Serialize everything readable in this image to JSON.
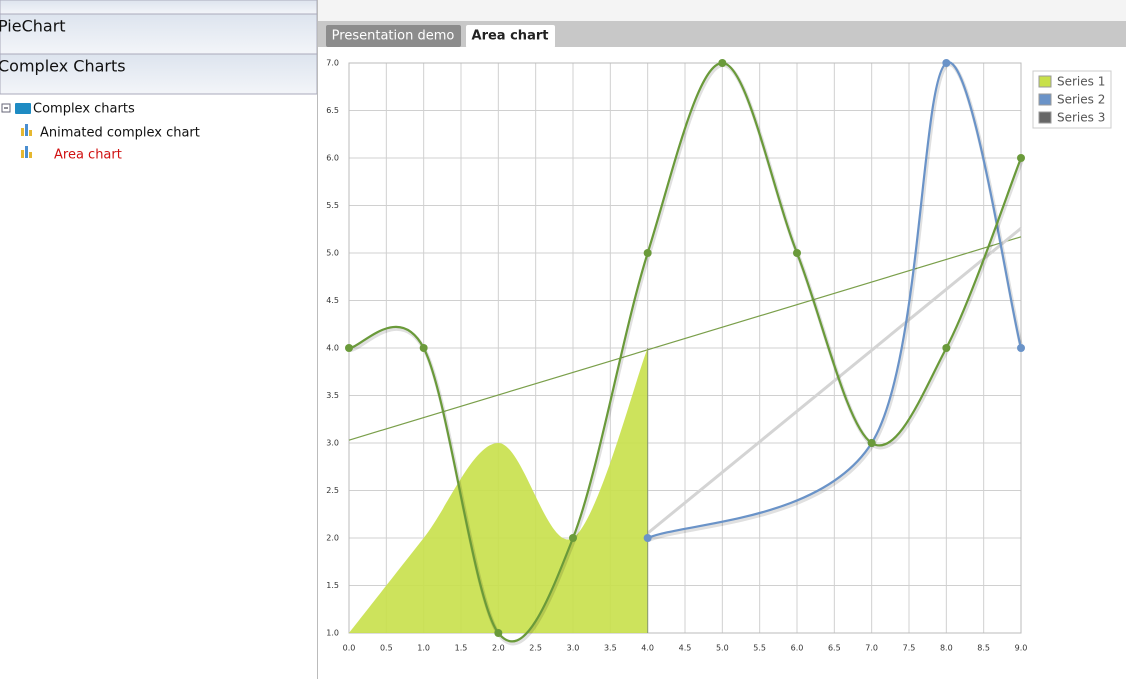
{
  "sidebar": {
    "panels": [
      "PieChart",
      "Complex Charts"
    ],
    "tree": {
      "folder": "Complex charts",
      "items": [
        "Animated complex chart",
        "Area chart"
      ]
    }
  },
  "tabs": [
    "Presentation demo",
    "Area chart"
  ],
  "chart_data": {
    "type": "line",
    "grid": true,
    "legend": "top-right",
    "series": [
      {
        "name": "Series 1",
        "color": "#c8e04a",
        "style": "area",
        "x": [
          0,
          1,
          2,
          3,
          4
        ],
        "values": [
          1,
          2,
          3,
          2,
          4
        ]
      },
      {
        "name": "Series 2",
        "color": "#6a93c8",
        "style": "line",
        "x": [
          4,
          7,
          8,
          9
        ],
        "values": [
          2,
          3,
          7,
          4
        ]
      },
      {
        "name": "Series 3",
        "color": "#666666",
        "line_color": "#6a9a3a",
        "style": "line",
        "x": [
          0,
          1,
          2,
          3,
          4,
          5,
          6,
          7,
          8,
          9
        ],
        "values": [
          4,
          4,
          1,
          2,
          5,
          7,
          5,
          3,
          4,
          6
        ]
      }
    ],
    "trend_lines": [
      {
        "color": "#7a9f4a",
        "x": [
          0,
          9
        ],
        "values": [
          3.03,
          5.17
        ]
      },
      {
        "color": "#d4d4d4",
        "x": [
          4,
          9
        ],
        "values": [
          2.05,
          5.26
        ]
      }
    ],
    "xlim": [
      0,
      9
    ],
    "ylim": [
      1,
      7
    ],
    "xticks": [
      {
        "value": 0,
        "label": "0.0"
      },
      {
        "value": 0.5,
        "label": "0.5"
      },
      {
        "value": 1,
        "label": "1.0"
      },
      {
        "value": 1.5,
        "label": "1.5"
      },
      {
        "value": 2,
        "label": "2.0"
      },
      {
        "value": 2.5,
        "label": "2.5"
      },
      {
        "value": 3,
        "label": "3.0"
      },
      {
        "value": 3.5,
        "label": "3.5"
      },
      {
        "value": 4,
        "label": "4.0"
      },
      {
        "value": 4.5,
        "label": "4.5"
      },
      {
        "value": 5,
        "label": "5.0"
      },
      {
        "value": 5.5,
        "label": "5.5"
      },
      {
        "value": 6,
        "label": "6.0"
      },
      {
        "value": 6.5,
        "label": "6.5"
      },
      {
        "value": 7,
        "label": "7.0"
      },
      {
        "value": 7.5,
        "label": "7.5"
      },
      {
        "value": 8,
        "label": "8.0"
      },
      {
        "value": 8.5,
        "label": "8.5"
      },
      {
        "value": 9,
        "label": "9.0"
      }
    ],
    "yticks": [
      {
        "value": 1,
        "label": "1.0"
      },
      {
        "value": 1.5,
        "label": "1.5"
      },
      {
        "value": 2,
        "label": "2.0"
      },
      {
        "value": 2.5,
        "label": "2.5"
      },
      {
        "value": 3,
        "label": "3.0"
      },
      {
        "value": 3.5,
        "label": "3.5"
      },
      {
        "value": 4,
        "label": "4.0"
      },
      {
        "value": 4.5,
        "label": "4.5"
      },
      {
        "value": 5,
        "label": "5.0"
      },
      {
        "value": 5.5,
        "label": "5.5"
      },
      {
        "value": 6,
        "label": "6.0"
      },
      {
        "value": 6.5,
        "label": "6.5"
      },
      {
        "value": 7,
        "label": "7.0"
      }
    ]
  }
}
